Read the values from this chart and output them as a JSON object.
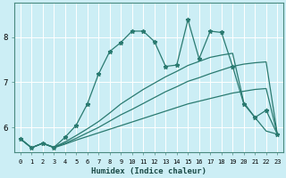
{
  "xlabel": "Humidex (Indice chaleur)",
  "background_color": "#cceef5",
  "grid_color": "#ffffff",
  "line_color": "#2a7a70",
  "xlim": [
    -0.5,
    23.5
  ],
  "ylim": [
    5.45,
    8.75
  ],
  "x_ticks": [
    0,
    1,
    2,
    3,
    4,
    5,
    6,
    7,
    8,
    9,
    10,
    11,
    12,
    13,
    14,
    15,
    16,
    17,
    18,
    19,
    20,
    21,
    22,
    23
  ],
  "y_ticks": [
    6,
    7,
    8
  ],
  "line1_y": [
    5.75,
    5.55,
    5.65,
    5.55,
    5.63,
    5.72,
    5.8,
    5.88,
    5.96,
    6.04,
    6.12,
    6.2,
    6.28,
    6.36,
    6.44,
    6.52,
    6.58,
    6.64,
    6.7,
    6.76,
    6.8,
    6.84,
    6.86,
    5.85
  ],
  "line2_y": [
    5.75,
    5.55,
    5.65,
    5.56,
    5.65,
    5.76,
    5.88,
    6.0,
    6.14,
    6.28,
    6.4,
    6.53,
    6.66,
    6.79,
    6.9,
    7.02,
    7.1,
    7.19,
    7.27,
    7.35,
    7.4,
    7.43,
    7.45,
    5.85
  ],
  "line3_y": [
    5.75,
    5.55,
    5.65,
    5.56,
    5.68,
    5.82,
    5.97,
    6.13,
    6.32,
    6.52,
    6.68,
    6.84,
    6.98,
    7.12,
    7.24,
    7.37,
    7.46,
    7.55,
    7.6,
    7.64,
    6.55,
    6.22,
    5.92,
    5.85
  ],
  "line4_y": [
    5.75,
    5.55,
    5.65,
    5.56,
    5.78,
    6.05,
    6.52,
    7.18,
    7.68,
    7.88,
    8.13,
    8.13,
    7.9,
    7.35,
    7.38,
    8.38,
    7.52,
    8.13,
    8.1,
    7.35,
    6.52,
    6.22,
    6.38,
    5.85
  ]
}
